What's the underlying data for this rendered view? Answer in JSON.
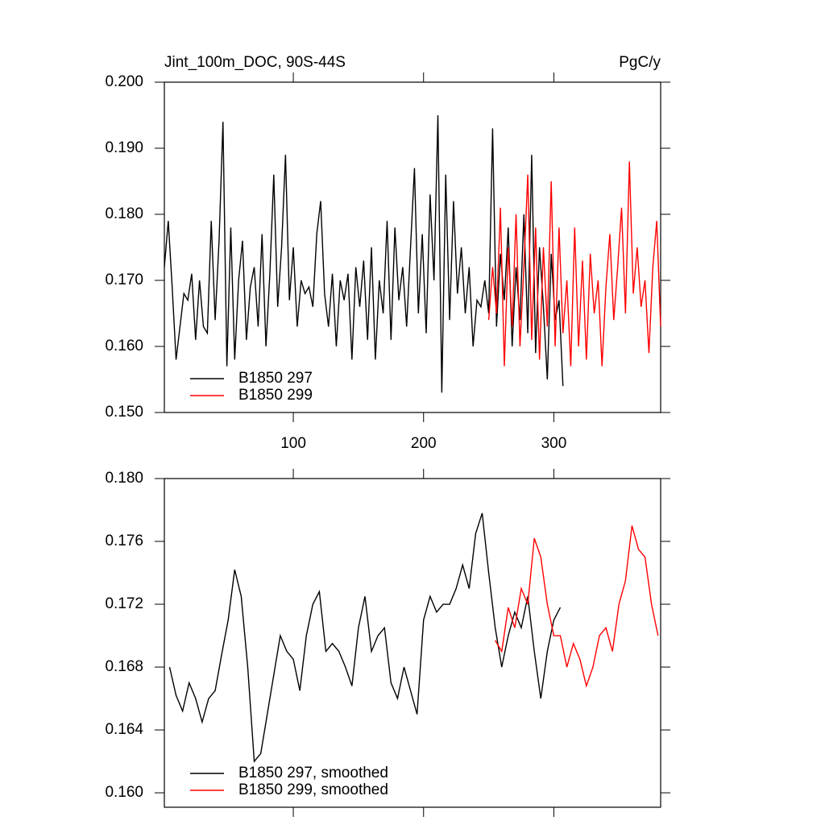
{
  "chart_data": [
    {
      "type": "line",
      "title": "Jint_100m_DOC, 90S-44S",
      "units": "PgC/y",
      "xlim": [
        1,
        382
      ],
      "xticks": [
        100,
        200,
        300
      ],
      "ylim": [
        0.15,
        0.2
      ],
      "yticks": [
        {
          "value": 0.15,
          "label": "0.150"
        },
        {
          "value": 0.16,
          "label": "0.160"
        },
        {
          "value": 0.17,
          "label": "0.170"
        },
        {
          "value": 0.18,
          "label": "0.180"
        },
        {
          "value": 0.19,
          "label": "0.190"
        },
        {
          "value": 0.2,
          "label": "0.200"
        }
      ],
      "legend": "lower left",
      "series": [
        {
          "name": "B1850 297",
          "color": "#000000",
          "x": [
            1,
            4,
            7,
            10,
            13,
            16,
            19,
            22,
            25,
            28,
            31,
            34,
            37,
            40,
            43,
            46,
            49,
            52,
            55,
            58,
            61,
            64,
            67,
            70,
            73,
            76,
            79,
            82,
            85,
            88,
            91,
            94,
            97,
            100,
            103,
            106,
            109,
            112,
            115,
            118,
            121,
            124,
            127,
            130,
            133,
            136,
            139,
            142,
            145,
            148,
            151,
            154,
            157,
            160,
            163,
            166,
            169,
            172,
            175,
            178,
            181,
            184,
            187,
            190,
            193,
            196,
            199,
            202,
            205,
            208,
            211,
            214,
            217,
            220,
            223,
            226,
            229,
            232,
            235,
            238,
            241,
            244,
            247,
            250,
            253,
            256,
            259,
            262,
            265,
            268,
            271,
            274,
            277,
            280,
            283,
            286,
            289,
            292,
            295,
            298,
            301,
            304,
            307
          ],
          "values": [
            0.172,
            0.179,
            0.169,
            0.158,
            0.163,
            0.168,
            0.167,
            0.171,
            0.161,
            0.17,
            0.163,
            0.162,
            0.179,
            0.164,
            0.176,
            0.194,
            0.157,
            0.178,
            0.158,
            0.17,
            0.176,
            0.161,
            0.169,
            0.172,
            0.163,
            0.177,
            0.16,
            0.171,
            0.186,
            0.166,
            0.175,
            0.189,
            0.167,
            0.175,
            0.163,
            0.17,
            0.168,
            0.169,
            0.166,
            0.177,
            0.182,
            0.168,
            0.163,
            0.171,
            0.16,
            0.17,
            0.167,
            0.171,
            0.158,
            0.172,
            0.166,
            0.173,
            0.161,
            0.175,
            0.158,
            0.17,
            0.165,
            0.179,
            0.161,
            0.178,
            0.167,
            0.172,
            0.163,
            0.175,
            0.187,
            0.165,
            0.177,
            0.162,
            0.183,
            0.17,
            0.195,
            0.153,
            0.186,
            0.164,
            0.182,
            0.168,
            0.175,
            0.165,
            0.172,
            0.16,
            0.167,
            0.166,
            0.17,
            0.165,
            0.193,
            0.163,
            0.174,
            0.167,
            0.178,
            0.16,
            0.172,
            0.164,
            0.18,
            0.162,
            0.189,
            0.159,
            0.175,
            0.166,
            0.155,
            0.174,
            0.164,
            0.167,
            0.154
          ]
        },
        {
          "name": "B1850 299",
          "color": "#ff0000",
          "x": [
            250,
            253,
            256,
            259,
            262,
            265,
            268,
            271,
            274,
            277,
            280,
            283,
            286,
            289,
            292,
            295,
            298,
            301,
            304,
            307,
            310,
            313,
            316,
            319,
            322,
            325,
            328,
            331,
            334,
            337,
            340,
            343,
            346,
            349,
            352,
            355,
            358,
            361,
            364,
            367,
            370,
            373,
            376,
            379,
            382
          ],
          "values": [
            0.164,
            0.172,
            0.165,
            0.181,
            0.157,
            0.175,
            0.163,
            0.18,
            0.16,
            0.172,
            0.186,
            0.161,
            0.178,
            0.158,
            0.175,
            0.163,
            0.185,
            0.16,
            0.178,
            0.162,
            0.17,
            0.157,
            0.178,
            0.16,
            0.173,
            0.158,
            0.174,
            0.165,
            0.17,
            0.157,
            0.169,
            0.177,
            0.164,
            0.172,
            0.181,
            0.165,
            0.188,
            0.168,
            0.175,
            0.166,
            0.17,
            0.159,
            0.172,
            0.179,
            0.163
          ]
        }
      ]
    },
    {
      "type": "line",
      "xlim": [
        1,
        382
      ],
      "xticks": [
        100,
        200,
        300
      ],
      "ylim": [
        0.15908,
        0.18
      ],
      "yticks": [
        {
          "value": 0.16,
          "label": "0.160"
        },
        0.164,
        0.168,
        0.172,
        0.176,
        {
          "value": 0.18,
          "label": "0.180"
        }
      ],
      "legend": "lower left",
      "series": [
        {
          "name": "B1850 297, smoothed",
          "color": "#000000",
          "x": [
            5,
            10,
            15,
            20,
            25,
            30,
            35,
            40,
            45,
            50,
            55,
            60,
            65,
            70,
            75,
            80,
            85,
            90,
            95,
            100,
            105,
            110,
            115,
            120,
            125,
            130,
            135,
            140,
            145,
            150,
            155,
            160,
            165,
            170,
            175,
            180,
            185,
            190,
            195,
            200,
            205,
            210,
            215,
            220,
            225,
            230,
            235,
            240,
            245,
            250,
            255,
            260,
            265,
            270,
            275,
            280,
            285,
            290,
            295,
            300,
            305
          ],
          "values": [
            0.168,
            0.1662,
            0.1652,
            0.167,
            0.166,
            0.1645,
            0.166,
            0.1665,
            0.1688,
            0.171,
            0.1742,
            0.1725,
            0.168,
            0.162,
            0.1625,
            0.165,
            0.1675,
            0.17,
            0.169,
            0.1685,
            0.1665,
            0.17,
            0.172,
            0.1728,
            0.169,
            0.1695,
            0.169,
            0.168,
            0.1668,
            0.1705,
            0.1725,
            0.169,
            0.17,
            0.1705,
            0.167,
            0.166,
            0.168,
            0.1665,
            0.165,
            0.171,
            0.1725,
            0.1715,
            0.172,
            0.172,
            0.173,
            0.1745,
            0.173,
            0.1765,
            0.1778,
            0.174,
            0.1705,
            0.168,
            0.17,
            0.1715,
            0.1705,
            0.1725,
            0.169,
            0.166,
            0.169,
            0.171,
            0.1718
          ]
        },
        {
          "name": "B1850 299, smoothed",
          "color": "#ff0000",
          "x": [
            255,
            260,
            265,
            270,
            275,
            280,
            285,
            290,
            295,
            300,
            305,
            310,
            315,
            320,
            325,
            330,
            335,
            340,
            345,
            350,
            355,
            360,
            365,
            370,
            375,
            380
          ],
          "values": [
            0.1697,
            0.169,
            0.1718,
            0.1705,
            0.173,
            0.172,
            0.1762,
            0.175,
            0.172,
            0.17,
            0.17,
            0.168,
            0.1695,
            0.1685,
            0.1668,
            0.168,
            0.17,
            0.1705,
            0.169,
            0.172,
            0.1735,
            0.177,
            0.1755,
            0.175,
            0.172,
            0.17
          ]
        }
      ]
    }
  ]
}
